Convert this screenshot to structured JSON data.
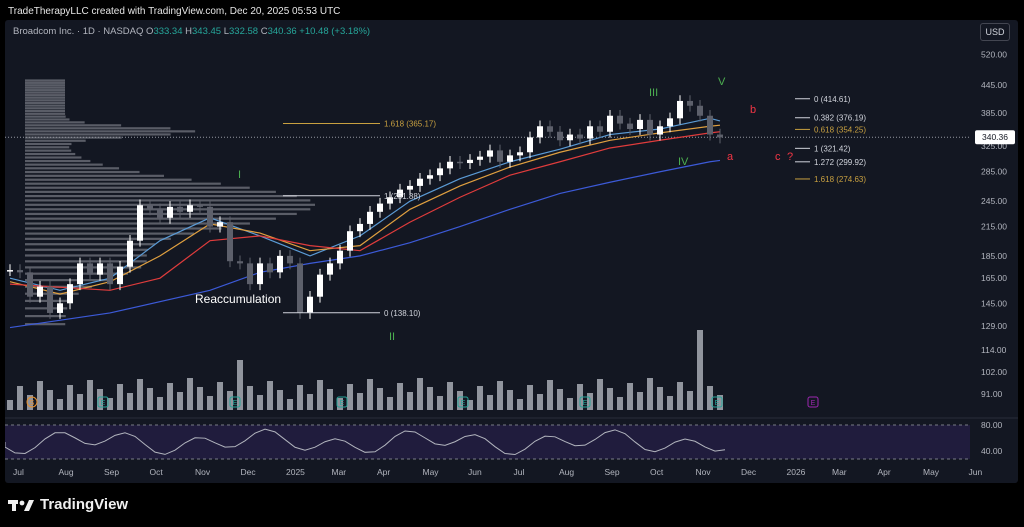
{
  "header": {
    "attribution": "TradeTherapyLLC created with TradingView.com, Dec 20, 2025 05:53 UTC"
  },
  "symbol": {
    "name": "Broadcom Inc. · 1D · NASDAQ",
    "o_label": "O",
    "o": "333.34",
    "h_label": "H",
    "h": "343.45",
    "l_label": "L",
    "l": "332.58",
    "c_label": "C",
    "c": "340.36",
    "change": "+10.48 (+3.18%)"
  },
  "currency": "USD",
  "footer": {
    "brand": "TradingView"
  },
  "colors": {
    "background": "#131722",
    "up": "#ffffff",
    "down": "#5d606b",
    "ma_fast": "#5b9bd5",
    "ma_mid": "#e0a040",
    "ma_slow": "#e03c3c",
    "ma_long": "#3c5ad8",
    "wave_green": "#4caf50",
    "wave_red": "#f23645",
    "fib_white": "#d1d4dc",
    "fib_gold": "#c8a040",
    "earnings": "#26a69a",
    "split": "#e8912d",
    "future_earnings": "#9c27b0",
    "last_price": "#ffffff"
  },
  "chart_data": {
    "type": "candlestick",
    "price_axis": [
      "520.00",
      "445.00",
      "385.00",
      "325.00",
      "285.00",
      "245.00",
      "215.00",
      "185.00",
      "165.00",
      "145.00",
      "129.00",
      "114.00",
      "102.00",
      "91.00"
    ],
    "log_scale": true,
    "last_price": "340.36",
    "x_axis": [
      "Jul",
      "Aug",
      "Sep",
      "Oct",
      "Nov",
      "Dec",
      "2025",
      "Mar",
      "Apr",
      "May",
      "Jun",
      "Jul",
      "Aug",
      "Sep",
      "Oct",
      "Nov",
      "Dec",
      "2026",
      "Mar",
      "Apr",
      "May",
      "Jun"
    ],
    "series": [
      {
        "points": [
          [
            0,
            172
          ],
          [
            1,
            170
          ],
          [
            2,
            150
          ],
          [
            3,
            158
          ],
          [
            4,
            138
          ],
          [
            5,
            145
          ],
          [
            6,
            160
          ],
          [
            7,
            178
          ],
          [
            8,
            168
          ],
          [
            9,
            178
          ],
          [
            10,
            160
          ],
          [
            11,
            175
          ],
          [
            12,
            200
          ],
          [
            13,
            240
          ],
          [
            14,
            235
          ],
          [
            15,
            225
          ],
          [
            16,
            238
          ],
          [
            17,
            232
          ],
          [
            18,
            240
          ],
          [
            19,
            238
          ],
          [
            20,
            215
          ],
          [
            21,
            220
          ],
          [
            22,
            180
          ],
          [
            23,
            178
          ],
          [
            24,
            160
          ],
          [
            25,
            178
          ],
          [
            26,
            170
          ],
          [
            27,
            185
          ],
          [
            28,
            178
          ],
          [
            29,
            138
          ],
          [
            30,
            150
          ],
          [
            31,
            168
          ],
          [
            32,
            178
          ],
          [
            33,
            190
          ],
          [
            34,
            210
          ],
          [
            35,
            218
          ],
          [
            36,
            232
          ],
          [
            37,
            242
          ],
          [
            38,
            250
          ],
          [
            39,
            260
          ],
          [
            40,
            265
          ],
          [
            41,
            275
          ],
          [
            42,
            280
          ],
          [
            43,
            290
          ],
          [
            44,
            300
          ],
          [
            45,
            298
          ],
          [
            46,
            303
          ],
          [
            47,
            308
          ],
          [
            48,
            318
          ],
          [
            49,
            300
          ],
          [
            50,
            310
          ],
          [
            51,
            315
          ],
          [
            52,
            340
          ],
          [
            53,
            360
          ],
          [
            54,
            350
          ],
          [
            55,
            335
          ],
          [
            56,
            345
          ],
          [
            57,
            338
          ],
          [
            58,
            360
          ],
          [
            59,
            350
          ],
          [
            60,
            380
          ],
          [
            61,
            365
          ],
          [
            62,
            355
          ],
          [
            63,
            372
          ],
          [
            64,
            345
          ],
          [
            65,
            360
          ],
          [
            66,
            375
          ],
          [
            67,
            410
          ],
          [
            68,
            400
          ],
          [
            69,
            380
          ],
          [
            70,
            345
          ],
          [
            71,
            340
          ]
        ]
      }
    ],
    "moving_averages": [
      {
        "points": [
          [
            0,
            165
          ],
          [
            5,
            155
          ],
          [
            10,
            165
          ],
          [
            15,
            200
          ],
          [
            20,
            225
          ],
          [
            25,
            205
          ],
          [
            30,
            185
          ],
          [
            35,
            205
          ],
          [
            40,
            245
          ],
          [
            45,
            275
          ],
          [
            50,
            300
          ],
          [
            55,
            320
          ],
          [
            60,
            345
          ],
          [
            65,
            355
          ],
          [
            70,
            375
          ],
          [
            71,
            370
          ]
        ]
      },
      {
        "points": [
          [
            0,
            162
          ],
          [
            5,
            152
          ],
          [
            10,
            162
          ],
          [
            15,
            185
          ],
          [
            20,
            218
          ],
          [
            25,
            208
          ],
          [
            30,
            190
          ],
          [
            35,
            195
          ],
          [
            40,
            235
          ],
          [
            45,
            265
          ],
          [
            50,
            292
          ],
          [
            55,
            315
          ],
          [
            60,
            335
          ],
          [
            65,
            348
          ],
          [
            70,
            360
          ],
          [
            71,
            362
          ]
        ]
      },
      {
        "points": [
          [
            0,
            160
          ],
          [
            10,
            155
          ],
          [
            15,
            165
          ],
          [
            20,
            200
          ],
          [
            25,
            205
          ],
          [
            30,
            195
          ],
          [
            35,
            190
          ],
          [
            40,
            220
          ],
          [
            45,
            250
          ],
          [
            50,
            280
          ],
          [
            55,
            300
          ],
          [
            60,
            322
          ],
          [
            65,
            335
          ],
          [
            70,
            348
          ],
          [
            71,
            350
          ]
        ]
      },
      {
        "points": [
          [
            0,
            128
          ],
          [
            10,
            138
          ],
          [
            20,
            155
          ],
          [
            25,
            170
          ],
          [
            30,
            178
          ],
          [
            35,
            185
          ],
          [
            40,
            198
          ],
          [
            45,
            215
          ],
          [
            50,
            235
          ],
          [
            55,
            255
          ],
          [
            60,
            270
          ],
          [
            65,
            285
          ],
          [
            70,
            300
          ],
          [
            71,
            302
          ]
        ]
      }
    ],
    "fib_levels": [
      {
        "label": "1 (251.88)",
        "value": 251.88,
        "color": "#d1d4dc"
      },
      {
        "label": "0 (138.10)",
        "value": 138.1,
        "color": "#d1d4dc"
      },
      {
        "label": "1.618 (365.17)",
        "value": 365.17,
        "color": "#c8a040"
      },
      {
        "label": "0 (414.61)",
        "value": 414.61,
        "color": "#d1d4dc"
      },
      {
        "label": "0.382 (376.19)",
        "value": 376.19,
        "color": "#d1d4dc"
      },
      {
        "label": "0.618 (354.25)",
        "value": 354.25,
        "color": "#c8a040"
      },
      {
        "label": "1 (321.42)",
        "value": 321.42,
        "color": "#d1d4dc"
      },
      {
        "label": "1.272 (299.92)",
        "value": 299.92,
        "color": "#d1d4dc"
      },
      {
        "label": "1.618 (274.63)",
        "value": 274.63,
        "color": "#c8a040"
      }
    ],
    "wave_labels": [
      {
        "text": "I",
        "color": "#4caf50"
      },
      {
        "text": "II",
        "color": "#4caf50"
      },
      {
        "text": "III",
        "color": "#4caf50"
      },
      {
        "text": "IV",
        "color": "#4caf50"
      },
      {
        "text": "V",
        "color": "#4caf50"
      },
      {
        "text": "a",
        "color": "#f23645"
      },
      {
        "text": "b",
        "color": "#f23645"
      },
      {
        "text": "c",
        "color": "#f23645"
      },
      {
        "text": "?",
        "color": "#f23645"
      }
    ],
    "annotations": [
      {
        "text": "Reaccumulation"
      }
    ],
    "events": [
      {
        "type": "S",
        "color": "#e8912d"
      },
      {
        "type": "E",
        "color": "#26a69a"
      },
      {
        "type": "E",
        "color": "#26a69a"
      },
      {
        "type": "E",
        "color": "#26a69a"
      },
      {
        "type": "E",
        "color": "#26a69a"
      },
      {
        "type": "E",
        "color": "#26a69a"
      },
      {
        "type": "E",
        "color": "#26a69a"
      },
      {
        "type": "E",
        "color": "#9c27b0"
      }
    ],
    "oscillator": {
      "axis": [
        "80.00",
        "40.00"
      ]
    }
  }
}
